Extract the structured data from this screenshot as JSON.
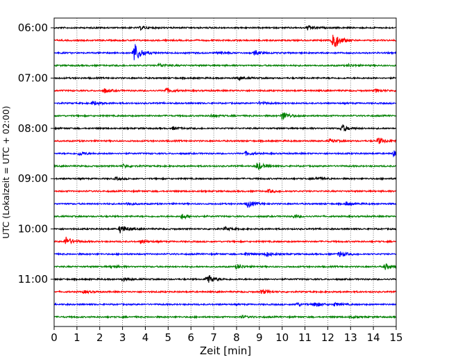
{
  "chart_data": {
    "type": "line",
    "xlabel": "Zeit  [min]",
    "ylabel": "UTC (Lokalzeit = UTC + 02:00)",
    "xlim": [
      0,
      15
    ],
    "xticks": [
      0,
      1,
      2,
      3,
      4,
      5,
      6,
      7,
      8,
      9,
      10,
      11,
      12,
      13,
      14,
      15
    ],
    "grid": "vertical dotted",
    "y_tick_labels": [
      {
        "label": "06:00",
        "row": 0
      },
      {
        "label": "07:00",
        "row": 4
      },
      {
        "label": "08:00",
        "row": 8
      },
      {
        "label": "09:00",
        "row": 12
      },
      {
        "label": "10:00",
        "row": 16
      },
      {
        "label": "11:00",
        "row": 20
      }
    ],
    "trace_colors": [
      "#000000",
      "#ff0000",
      "#0000ff",
      "#008000"
    ],
    "traces": [
      {
        "start": "06:00",
        "color": "#000000",
        "events": [
          {
            "t": 3.8,
            "a": 0.6
          },
          {
            "t": 11.1,
            "a": 0.8
          }
        ]
      },
      {
        "start": "06:15",
        "color": "#ff0000",
        "events": [
          {
            "t": 12.2,
            "a": 3.5
          }
        ]
      },
      {
        "start": "06:30",
        "color": "#0000ff",
        "events": [
          {
            "t": 3.5,
            "a": 3.5
          },
          {
            "t": 7.2,
            "a": 0.5
          },
          {
            "t": 8.8,
            "a": 0.7
          }
        ]
      },
      {
        "start": "06:45",
        "color": "#008000",
        "events": [
          {
            "t": 4.6,
            "a": 0.6
          },
          {
            "t": 12.9,
            "a": 0.4
          }
        ]
      },
      {
        "start": "07:00",
        "color": "#000000",
        "events": [
          {
            "t": 8.1,
            "a": 0.5
          }
        ]
      },
      {
        "start": "07:15",
        "color": "#ff0000",
        "events": [
          {
            "t": 2.2,
            "a": 0.7
          },
          {
            "t": 4.9,
            "a": 0.8
          },
          {
            "t": 14.1,
            "a": 0.5
          }
        ]
      },
      {
        "start": "07:30",
        "color": "#0000ff",
        "events": [
          {
            "t": 1.7,
            "a": 0.7
          },
          {
            "t": 9.0,
            "a": 0.4
          }
        ]
      },
      {
        "start": "07:45",
        "color": "#008000",
        "events": [
          {
            "t": 10.0,
            "a": 1.5
          },
          {
            "t": 6.9,
            "a": 0.5
          }
        ]
      },
      {
        "start": "08:00",
        "color": "#000000",
        "events": [
          {
            "t": 12.6,
            "a": 1.3
          },
          {
            "t": 5.2,
            "a": 0.4
          }
        ]
      },
      {
        "start": "08:15",
        "color": "#ff0000",
        "events": [
          {
            "t": 14.2,
            "a": 1.1
          },
          {
            "t": 12.1,
            "a": 0.6
          }
        ]
      },
      {
        "start": "08:30",
        "color": "#0000ff",
        "events": [
          {
            "t": 1.1,
            "a": 0.7
          },
          {
            "t": 14.9,
            "a": 1.0
          },
          {
            "t": 8.4,
            "a": 0.6
          }
        ]
      },
      {
        "start": "08:45",
        "color": "#008000",
        "events": [
          {
            "t": 8.9,
            "a": 1.3
          },
          {
            "t": 3.0,
            "a": 0.5
          }
        ]
      },
      {
        "start": "09:00",
        "color": "#000000",
        "events": [
          {
            "t": 11.5,
            "a": 0.5
          },
          {
            "t": 2.7,
            "a": 0.4
          }
        ]
      },
      {
        "start": "09:15",
        "color": "#ff0000",
        "events": [
          {
            "t": 9.4,
            "a": 0.5
          }
        ]
      },
      {
        "start": "09:30",
        "color": "#0000ff",
        "events": [
          {
            "t": 8.5,
            "a": 1.2
          },
          {
            "t": 12.8,
            "a": 0.6
          },
          {
            "t": 3.2,
            "a": 0.5
          }
        ]
      },
      {
        "start": "09:45",
        "color": "#008000",
        "events": [
          {
            "t": 5.6,
            "a": 0.9
          },
          {
            "t": 10.5,
            "a": 0.4
          }
        ]
      },
      {
        "start": "10:00",
        "color": "#000000",
        "events": [
          {
            "t": 2.9,
            "a": 1.4
          },
          {
            "t": 7.5,
            "a": 0.5
          }
        ]
      },
      {
        "start": "10:15",
        "color": "#ff0000",
        "events": [
          {
            "t": 0.5,
            "a": 1.5
          },
          {
            "t": 3.8,
            "a": 0.5
          }
        ]
      },
      {
        "start": "10:30",
        "color": "#0000ff",
        "events": [
          {
            "t": 12.5,
            "a": 1.0
          },
          {
            "t": 9.3,
            "a": 0.7
          },
          {
            "t": 8.4,
            "a": 0.5
          }
        ]
      },
      {
        "start": "10:45",
        "color": "#008000",
        "events": [
          {
            "t": 14.5,
            "a": 1.0
          },
          {
            "t": 8.0,
            "a": 0.8
          },
          {
            "t": 2.5,
            "a": 0.4
          }
        ]
      },
      {
        "start": "11:00",
        "color": "#000000",
        "events": [
          {
            "t": 6.7,
            "a": 1.8
          },
          {
            "t": 3.0,
            "a": 0.5
          }
        ]
      },
      {
        "start": "11:15",
        "color": "#ff0000",
        "events": [
          {
            "t": 9.1,
            "a": 0.7
          },
          {
            "t": 1.3,
            "a": 0.4
          }
        ]
      },
      {
        "start": "11:30",
        "color": "#0000ff",
        "events": [
          {
            "t": 11.4,
            "a": 0.9
          },
          {
            "t": 10.6,
            "a": 0.6
          },
          {
            "t": 12.3,
            "a": 0.5
          }
        ]
      },
      {
        "start": "11:45",
        "color": "#008000",
        "events": [
          {
            "t": 13.0,
            "a": 0.4
          },
          {
            "t": 8.2,
            "a": 0.4
          }
        ]
      }
    ]
  }
}
